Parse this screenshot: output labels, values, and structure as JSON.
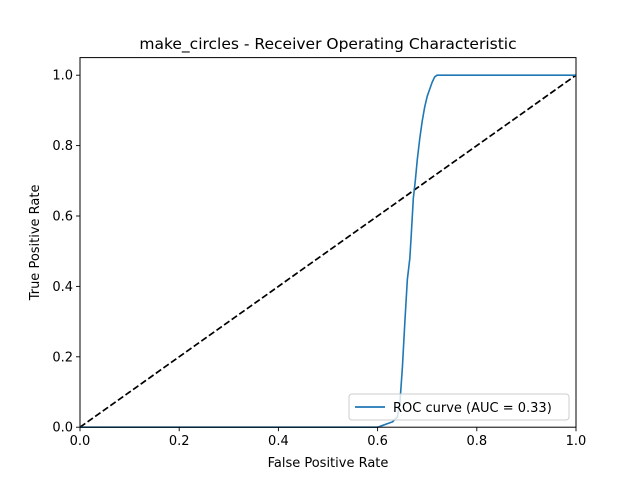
{
  "chart_data": {
    "type": "line",
    "title": "make_circles - Receiver Operating Characteristic",
    "xlabel": "False Positive Rate",
    "ylabel": "True Positive Rate",
    "xlim": [
      0.0,
      1.0
    ],
    "ylim": [
      0.0,
      1.05
    ],
    "x_ticks": [
      0.0,
      0.2,
      0.4,
      0.6,
      0.8,
      1.0
    ],
    "y_ticks": [
      0.0,
      0.2,
      0.4,
      0.6,
      0.8,
      1.0
    ],
    "x_tick_labels": [
      "0.0",
      "0.2",
      "0.4",
      "0.6",
      "0.8",
      "1.0"
    ],
    "y_tick_labels": [
      "0.0",
      "0.2",
      "0.4",
      "0.6",
      "0.8",
      "1.0"
    ],
    "grid": false,
    "legend_position": "lower-right",
    "series": [
      {
        "name": "ROC curve (AUC = 0.33)",
        "color": "#1f77b4",
        "style": "solid",
        "x": [
          0.0,
          0.6,
          0.61,
          0.62,
          0.63,
          0.64,
          0.645,
          0.65,
          0.655,
          0.66,
          0.665,
          0.668,
          0.672,
          0.676,
          0.68,
          0.685,
          0.69,
          0.695,
          0.7,
          0.705,
          0.71,
          0.715,
          0.72,
          0.73,
          1.0
        ],
        "y": [
          0.0,
          0.0,
          0.005,
          0.01,
          0.015,
          0.03,
          0.07,
          0.17,
          0.3,
          0.42,
          0.48,
          0.55,
          0.65,
          0.7,
          0.76,
          0.82,
          0.87,
          0.91,
          0.94,
          0.96,
          0.98,
          0.995,
          1.0,
          1.0,
          1.0
        ]
      },
      {
        "name": "",
        "color": "#000000",
        "style": "dashed",
        "x": [
          0.0,
          1.0
        ],
        "y": [
          0.0,
          1.0
        ]
      }
    ]
  }
}
